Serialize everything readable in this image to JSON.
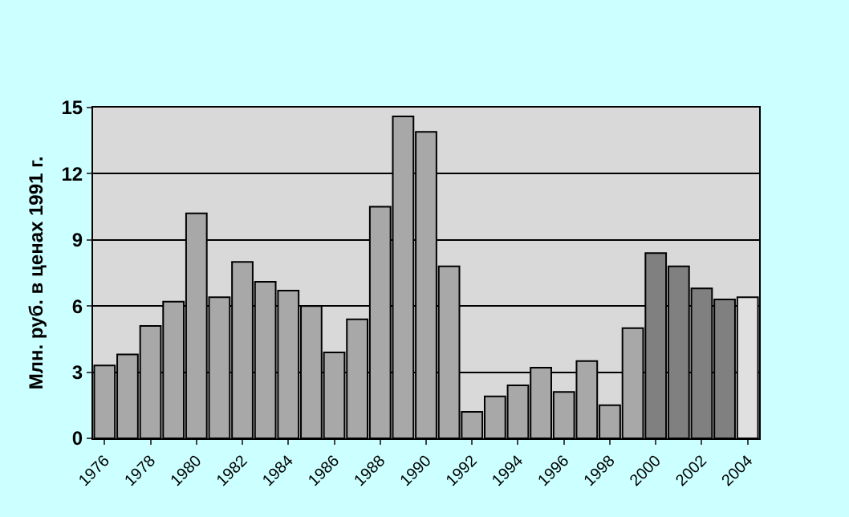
{
  "chart_data": {
    "type": "bar",
    "ylabel": "Млн. руб. в ценах 1991 г.",
    "categories": [
      "1976",
      null,
      "1978",
      null,
      "1980",
      null,
      "1982",
      null,
      "1984",
      null,
      "1986",
      null,
      "1988",
      null,
      "1990",
      null,
      "1992",
      null,
      "1994",
      null,
      "1996",
      null,
      "1998",
      null,
      "2000",
      null,
      "2002",
      null,
      "2004"
    ],
    "values": [
      3.3,
      3.8,
      5.1,
      6.2,
      10.2,
      6.4,
      8.0,
      7.1,
      6.7,
      6.0,
      3.9,
      5.4,
      10.5,
      14.6,
      13.9,
      7.8,
      1.2,
      1.9,
      2.4,
      3.2,
      2.1,
      3.5,
      1.5,
      5.0,
      8.4,
      7.8,
      6.8,
      6.3,
      6.4
    ],
    "colors": [
      "#a8a8a8",
      "#a8a8a8",
      "#a8a8a8",
      "#a8a8a8",
      "#a8a8a8",
      "#a8a8a8",
      "#a8a8a8",
      "#a8a8a8",
      "#a8a8a8",
      "#a8a8a8",
      "#a8a8a8",
      "#a8a8a8",
      "#a8a8a8",
      "#a8a8a8",
      "#a8a8a8",
      "#a8a8a8",
      "#a8a8a8",
      "#a8a8a8",
      "#a8a8a8",
      "#a8a8a8",
      "#a8a8a8",
      "#a8a8a8",
      "#a8a8a8",
      "#a8a8a8",
      "#808080",
      "#808080",
      "#808080",
      "#808080",
      "#e0e0e0"
    ],
    "ylim": [
      0,
      15
    ],
    "yticks": [
      0,
      3,
      6,
      9,
      12,
      15
    ],
    "grid": "y"
  }
}
